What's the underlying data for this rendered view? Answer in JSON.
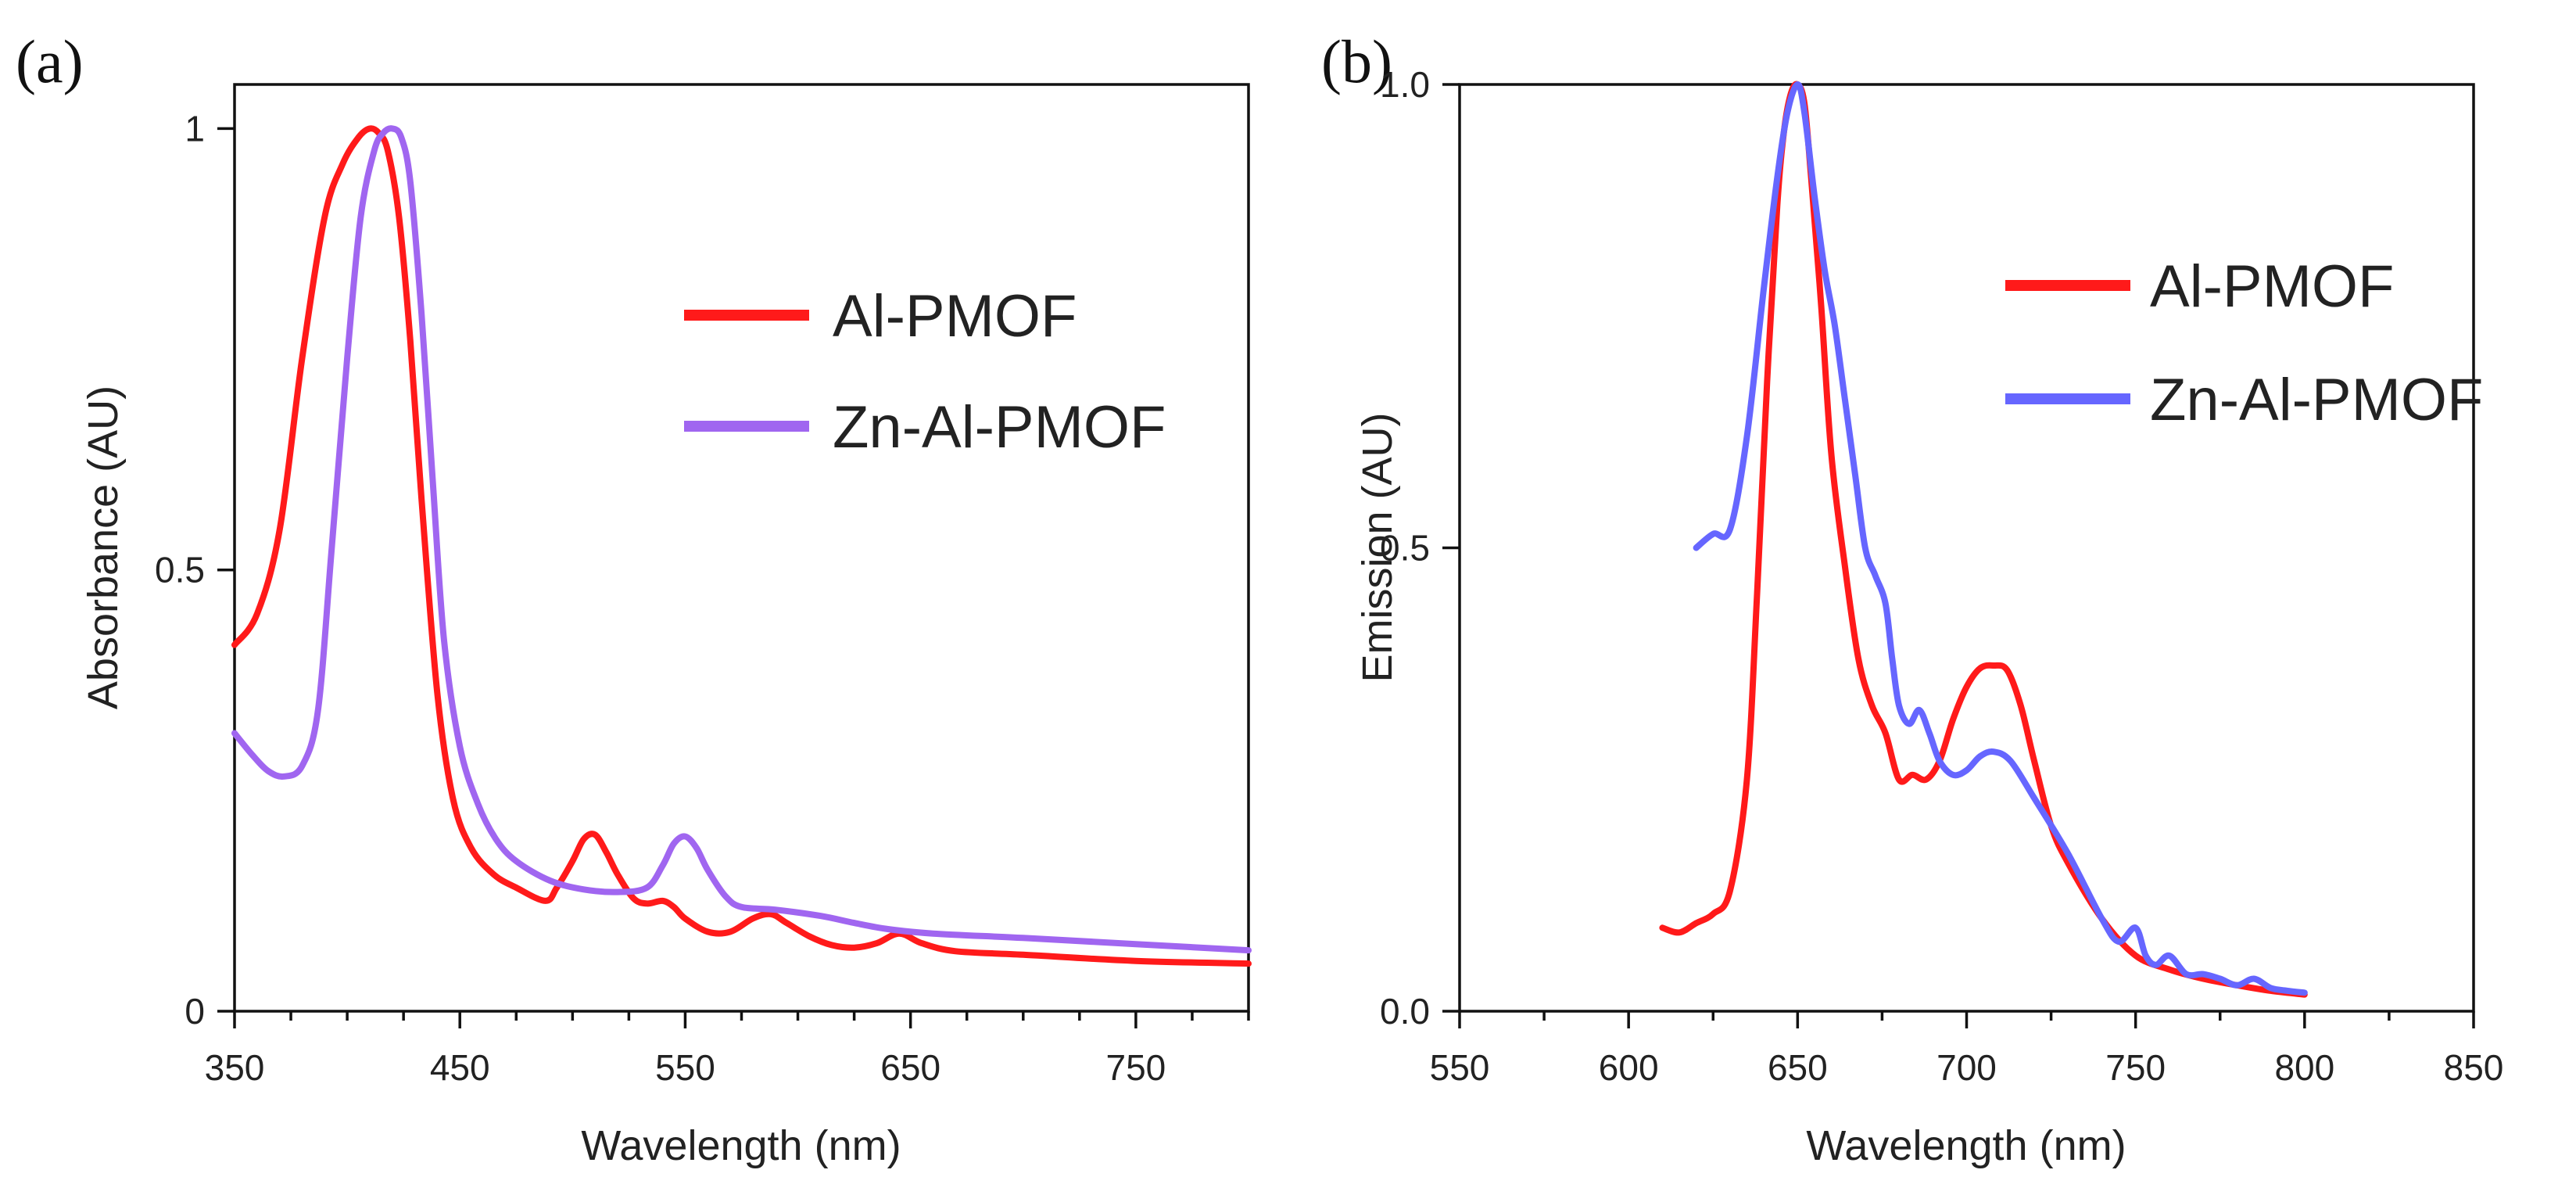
{
  "chart_data": [
    {
      "panel_tag": "(a)",
      "type": "line",
      "xlabel": "Wavelength (nm)",
      "ylabel": "Absorbance (AU)",
      "xlim": [
        350,
        800
      ],
      "ylim": [
        0,
        1.05
      ],
      "xticks": [
        350,
        450,
        550,
        650,
        750
      ],
      "xtick_labels": [
        "350",
        "450",
        "550",
        "650",
        "750"
      ],
      "minor_xticks": [
        375,
        400,
        425,
        475,
        500,
        525,
        575,
        600,
        625,
        675,
        700,
        725,
        775,
        800
      ],
      "yticks": [
        0,
        0.5,
        1
      ],
      "ytick_labels": [
        "0",
        "0.5",
        "1"
      ],
      "grid": false,
      "legend_position": "upper-right",
      "series": [
        {
          "name": "Al-PMOF",
          "color": "#ff1a1a",
          "x": [
            350,
            360,
            370,
            380,
            390,
            398,
            405,
            410,
            414,
            418,
            423,
            428,
            433,
            440,
            447,
            455,
            465,
            475,
            488,
            493,
            500,
            505,
            510,
            515,
            520,
            527,
            533,
            540,
            545,
            550,
            560,
            570,
            580,
            588,
            595,
            605,
            615,
            625,
            635,
            645,
            655,
            670,
            700,
            750,
            800
          ],
          "y": [
            0.415,
            0.45,
            0.545,
            0.74,
            0.9,
            0.96,
            0.99,
            1.0,
            0.995,
            0.975,
            0.9,
            0.76,
            0.58,
            0.36,
            0.24,
            0.185,
            0.155,
            0.14,
            0.125,
            0.14,
            0.17,
            0.195,
            0.2,
            0.18,
            0.155,
            0.128,
            0.122,
            0.125,
            0.118,
            0.105,
            0.09,
            0.09,
            0.105,
            0.11,
            0.1,
            0.085,
            0.075,
            0.072,
            0.077,
            0.088,
            0.077,
            0.068,
            0.064,
            0.057,
            0.054
          ]
        },
        {
          "name": "Zn-Al-PMOF",
          "color": "#a066f0",
          "x": [
            350,
            358,
            365,
            372,
            380,
            387,
            393,
            400,
            406,
            412,
            416,
            420,
            424,
            428,
            433,
            438,
            443,
            450,
            458,
            466,
            475,
            490,
            505,
            520,
            533,
            540,
            545,
            550,
            555,
            560,
            568,
            575,
            590,
            610,
            625,
            640,
            660,
            700,
            750,
            800
          ],
          "y": [
            0.315,
            0.29,
            0.272,
            0.266,
            0.278,
            0.34,
            0.52,
            0.74,
            0.9,
            0.975,
            0.995,
            1.0,
            0.99,
            0.94,
            0.79,
            0.6,
            0.42,
            0.3,
            0.235,
            0.195,
            0.17,
            0.148,
            0.138,
            0.135,
            0.14,
            0.165,
            0.19,
            0.198,
            0.185,
            0.16,
            0.13,
            0.118,
            0.115,
            0.108,
            0.1,
            0.093,
            0.088,
            0.083,
            0.076,
            0.069
          ]
        }
      ]
    },
    {
      "panel_tag": "(b)",
      "type": "line",
      "xlabel": "Wavelength (nm)",
      "ylabel": "Emission (AU)",
      "xlim": [
        550,
        850
      ],
      "ylim": [
        0,
        1.0
      ],
      "xticks": [
        550,
        600,
        650,
        700,
        750,
        800,
        850
      ],
      "xtick_labels": [
        "550",
        "600",
        "650",
        "700",
        "750",
        "800",
        "850"
      ],
      "minor_xticks": [
        575,
        625,
        675,
        725,
        775,
        825
      ],
      "yticks": [
        0,
        0.5,
        1.0
      ],
      "ytick_labels": [
        "0.0",
        "0.5",
        "1.0"
      ],
      "grid": false,
      "legend_position": "upper-right",
      "series": [
        {
          "name": "Al-PMOF",
          "color": "#ff1a1a",
          "x": [
            610,
            615,
            620,
            625,
            630,
            635,
            638,
            641,
            644,
            646,
            648,
            650,
            652,
            654,
            657,
            660,
            664,
            668,
            672,
            676,
            680,
            684,
            688,
            692,
            696,
            700,
            704,
            708,
            712,
            716,
            720,
            725,
            730,
            740,
            750,
            760,
            770,
            780,
            790,
            800
          ],
          "y": [
            0.09,
            0.085,
            0.095,
            0.105,
            0.13,
            0.25,
            0.45,
            0.68,
            0.87,
            0.95,
            0.99,
            1.0,
            0.98,
            0.9,
            0.76,
            0.6,
            0.48,
            0.38,
            0.33,
            0.3,
            0.25,
            0.255,
            0.25,
            0.27,
            0.315,
            0.35,
            0.37,
            0.373,
            0.368,
            0.33,
            0.27,
            0.2,
            0.16,
            0.1,
            0.06,
            0.045,
            0.035,
            0.028,
            0.022,
            0.018
          ]
        },
        {
          "name": "Zn-Al-PMOF",
          "color": "#6666ff",
          "x": [
            620,
            625,
            630,
            635,
            640,
            644,
            647,
            650,
            652,
            655,
            658,
            661,
            664,
            667,
            670,
            673,
            676,
            678,
            680,
            683,
            686,
            689,
            692,
            696,
            700,
            704,
            708,
            713,
            720,
            730,
            740,
            745,
            750,
            753,
            756,
            760,
            765,
            770,
            775,
            780,
            785,
            790,
            795,
            800
          ],
          "y": [
            0.5,
            0.515,
            0.52,
            0.62,
            0.78,
            0.9,
            0.97,
            1.0,
            0.97,
            0.88,
            0.8,
            0.74,
            0.66,
            0.58,
            0.5,
            0.47,
            0.44,
            0.38,
            0.33,
            0.31,
            0.325,
            0.3,
            0.27,
            0.255,
            0.26,
            0.275,
            0.28,
            0.27,
            0.23,
            0.17,
            0.1,
            0.075,
            0.09,
            0.06,
            0.05,
            0.06,
            0.04,
            0.04,
            0.035,
            0.028,
            0.035,
            0.025,
            0.022,
            0.02
          ]
        }
      ]
    }
  ]
}
